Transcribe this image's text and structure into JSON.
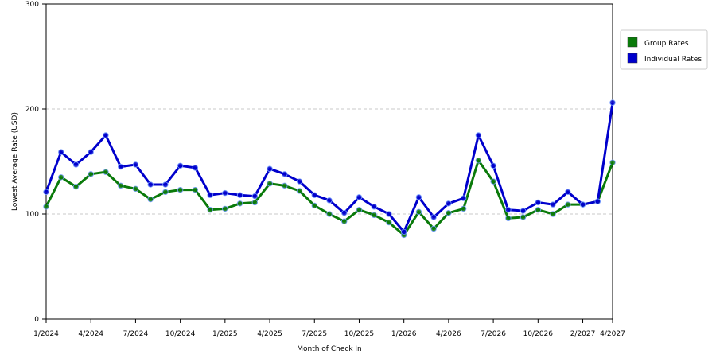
{
  "chart_data": {
    "type": "line",
    "xlabel": "Month of Check In",
    "ylabel": "Lowest Average Rate (USD)",
    "ylim": [
      0,
      300
    ],
    "yticks": [
      "0",
      "100",
      "200",
      "300"
    ],
    "grid": "horizontal dashed",
    "legend_placement": "right",
    "x_tick_labels": [
      "1/2024",
      "4/2024",
      "7/2024",
      "10/2024",
      "1/2025",
      "4/2025",
      "7/2025",
      "10/2025",
      "1/2026",
      "4/2026",
      "7/2026",
      "10/2026",
      "2/2027",
      "4/2027"
    ],
    "x_tick_index": [
      0,
      3,
      6,
      9,
      12,
      15,
      18,
      21,
      24,
      27,
      30,
      33,
      36,
      38
    ],
    "series": [
      {
        "name": "Group Rates",
        "color": "#0a7a0a",
        "values": [
          107,
          135,
          126,
          138,
          140,
          127,
          124,
          114,
          121,
          123,
          123,
          104,
          105,
          110,
          111,
          129,
          127,
          122,
          108,
          100,
          93,
          104,
          99,
          92,
          80,
          102,
          86,
          101,
          105,
          151,
          131,
          96,
          97,
          104,
          100,
          109,
          109,
          112,
          149
        ]
      },
      {
        "name": "Individual Rates",
        "color": "#0000cc",
        "values": [
          121,
          159,
          147,
          159,
          175,
          145,
          147,
          128,
          128,
          146,
          144,
          118,
          120,
          118,
          117,
          143,
          138,
          131,
          118,
          113,
          101,
          116,
          107,
          100,
          83,
          116,
          97,
          110,
          115,
          175,
          146,
          104,
          103,
          111,
          109,
          121,
          109,
          112,
          206
        ]
      }
    ]
  }
}
